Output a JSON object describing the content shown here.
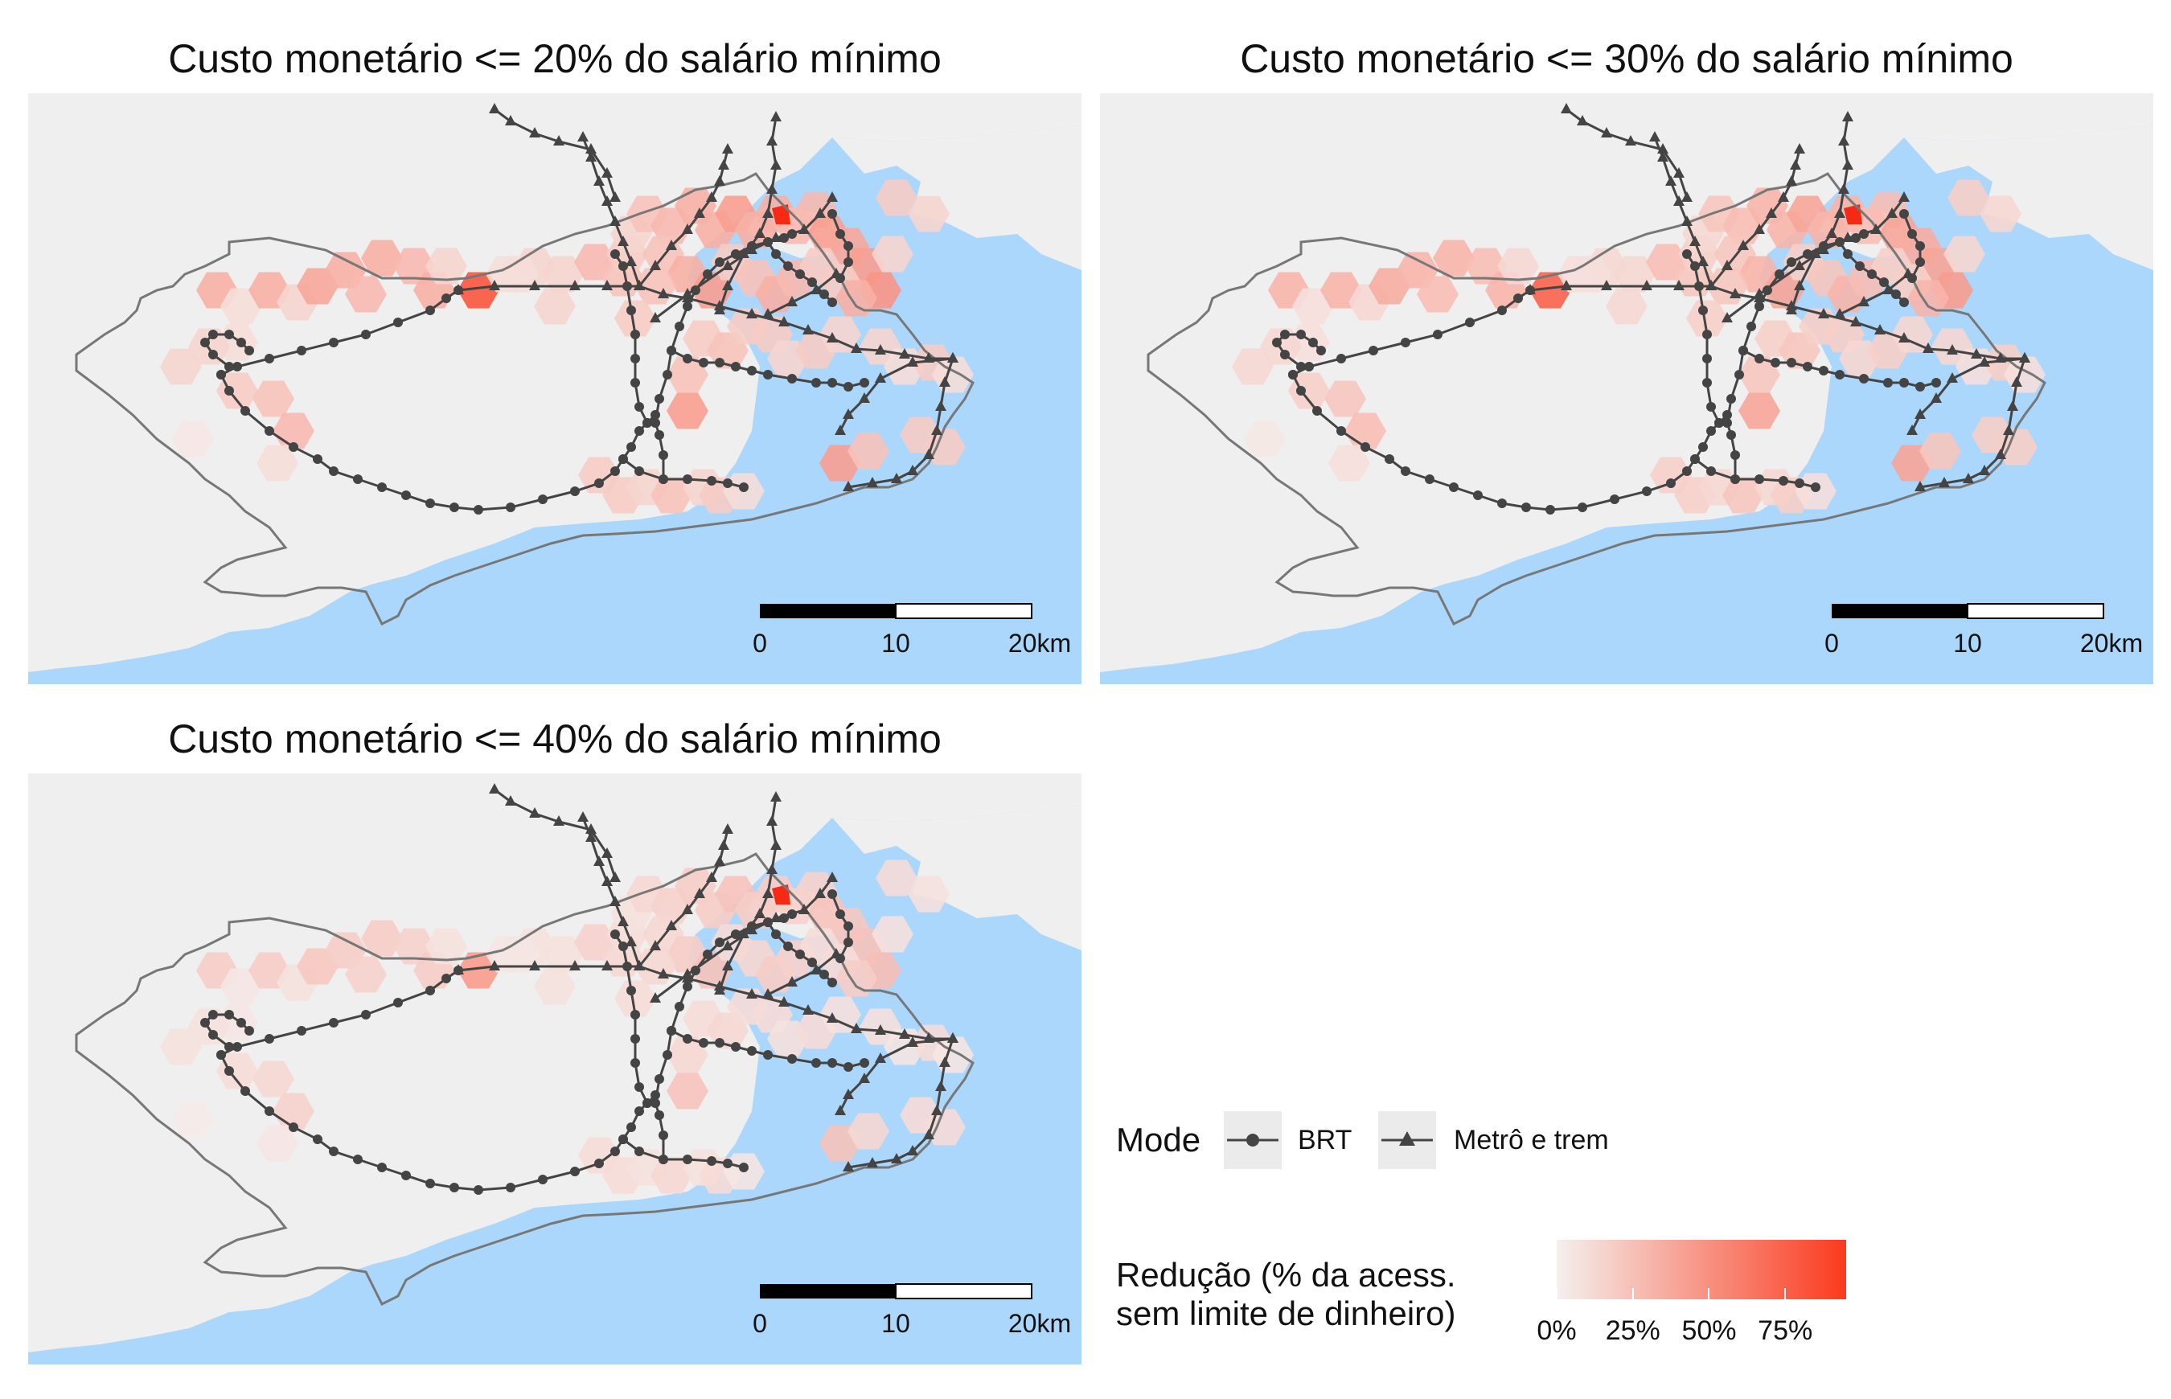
{
  "panels": [
    {
      "title": "Custo monetário <= 20% do salário mínimo",
      "intensity": 1.0
    },
    {
      "title": "Custo monetário <= 30% do salário mínimo",
      "intensity": 0.92
    },
    {
      "title": "Custo monetário <= 40% do salário mínimo",
      "intensity": 0.55
    }
  ],
  "scale_bar": {
    "labels": [
      "0",
      "10",
      "20km"
    ]
  },
  "legend": {
    "mode_title": "Mode",
    "modes": [
      {
        "label": "BRT",
        "icon": "circle-marker-icon"
      },
      {
        "label": "Metrô e trem",
        "icon": "triangle-marker-icon"
      }
    ],
    "fill_title_line1": "Redução (% da acess.",
    "fill_title_line2": "sem limite de dinheiro)",
    "fill_ticks": [
      "0%",
      "25%",
      "50%",
      "75%"
    ],
    "fill_range": [
      0,
      0.95
    ],
    "gradient_colors": [
      "#f5f0ee",
      "#fb3a1e"
    ]
  },
  "colors": {
    "water": "#aad7fb",
    "land": "#efefef",
    "boundary": "#777777",
    "transit": "#444444",
    "high": "#f42a15"
  }
}
